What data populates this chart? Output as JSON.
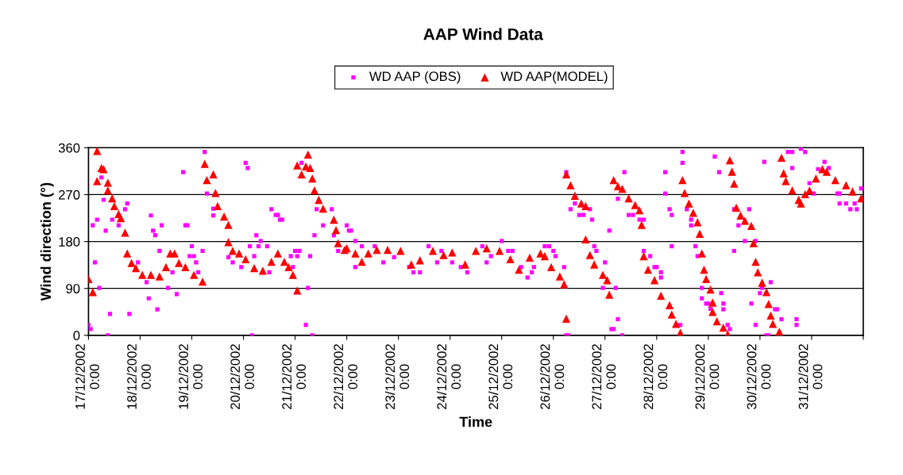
{
  "chart_data": {
    "type": "scatter",
    "title": "AAP Wind Data",
    "xlabel": "Time",
    "ylabel": "Wind direction (°)",
    "series": [
      {
        "name": "WD AAP (OBS)",
        "color": "#ff00ff",
        "marker": "square",
        "x": [
          "2002-12-17T00:00",
          "2002-12-17T01:00",
          "2002-12-17T02:00",
          "2002-12-17T03:00",
          "2002-12-17T04:00",
          "2002-12-17T05:00",
          "2002-12-17T06:00",
          "2002-12-17T07:00",
          "2002-12-17T08:00",
          "2002-12-17T09:00",
          "2002-12-17T10:00",
          "2002-12-17T11:00",
          "2002-12-17T14:00",
          "2002-12-17T17:00",
          "2002-12-17T18:00",
          "2002-12-17T19:00",
          "2002-12-17T23:00",
          "2002-12-18T03:00",
          "2002-12-18T04:00",
          "2002-12-18T05:00",
          "2002-12-18T06:00",
          "2002-12-18T07:00",
          "2002-12-18T08:00",
          "2002-12-18T09:00",
          "2002-12-18T10:00",
          "2002-12-18T13:00",
          "2002-12-18T15:00",
          "2002-12-18T17:00",
          "2002-12-18T20:00",
          "2002-12-18T21:00",
          "2002-12-18T22:00",
          "2002-12-18T23:00",
          "2002-12-19T00:00",
          "2002-12-19T01:00",
          "2002-12-19T02:00",
          "2002-12-19T03:00",
          "2002-12-19T05:00",
          "2002-12-19T06:00",
          "2002-12-19T07:00",
          "2002-12-19T10:00",
          "2002-12-19T10:00",
          "2002-12-19T17:00",
          "2002-12-19T19:00",
          "2002-12-19T23:00",
          "2002-12-20T01:00",
          "2002-12-20T02:00",
          "2002-12-20T03:00",
          "2002-12-20T04:00",
          "2002-12-20T05:00",
          "2002-12-20T06:00",
          "2002-12-20T08:00",
          "2002-12-20T07:00",
          "2002-12-20T11:00",
          "2002-12-20T12:00",
          "2002-12-20T13:00",
          "2002-12-20T15:00",
          "2002-12-20T16:00",
          "2002-12-20T17:00",
          "2002-12-20T18:00",
          "2002-12-20T22:00",
          "2002-12-20T23:00",
          "2002-12-21T00:00",
          "2002-12-21T01:00",
          "2002-12-21T02:00",
          "2002-12-21T03:00",
          "2002-12-21T05:00",
          "2002-12-21T06:00",
          "2002-12-21T07:00",
          "2002-12-21T08:00",
          "2002-12-21T09:00",
          "2002-12-21T10:00",
          "2002-12-21T13:00",
          "2002-12-21T17:00",
          "2002-12-21T18:00",
          "2002-12-21T20:00",
          "2002-12-22T00:00",
          "2002-12-22T01:00",
          "2002-12-22T02:00",
          "2002-12-22T04:00",
          "2002-12-22T04:00",
          "2002-12-22T07:00",
          "2002-12-22T13:00",
          "2002-12-22T17:00",
          "2002-12-22T22:00",
          "2002-12-23T05:00",
          "2002-12-23T07:00",
          "2002-12-23T10:00",
          "2002-12-23T14:00",
          "2002-12-23T18:00",
          "2002-12-23T20:00",
          "2002-12-24T01:00",
          "2002-12-24T05:00",
          "2002-12-24T08:00",
          "2002-12-24T15:00",
          "2002-12-24T17:00",
          "2002-12-24T19:00",
          "2002-12-25T00:00",
          "2002-12-25T03:00",
          "2002-12-25T05:00",
          "2002-12-25T09:00",
          "2002-12-25T12:00",
          "2002-12-25T14:00",
          "2002-12-25T15:00",
          "2002-12-25T20:00",
          "2002-12-25T22:00",
          "2002-12-26T00:00",
          "2002-12-26T01:00",
          "2002-12-26T05:00",
          "2002-12-26T06:00",
          "2002-12-26T07:00",
          "2002-12-26T06:00",
          "2002-12-26T08:00",
          "2002-12-26T10:00",
          "2002-12-26T12:00",
          "2002-12-26T14:00",
          "2002-12-26T17:00",
          "2002-12-26T18:00",
          "2002-12-26T19:00",
          "2002-12-26T20:00",
          "2002-12-26T23:00",
          "2002-12-27T00:00",
          "2002-12-27T02:00",
          "2002-12-27T03:00",
          "2002-12-27T04:00",
          "2002-12-27T05:00",
          "2002-12-27T06:00",
          "2002-12-27T08:00",
          "2002-12-27T06:00",
          "2002-12-27T09:00",
          "2002-12-27T11:00",
          "2002-12-27T13:00",
          "2002-12-27T16:00",
          "2002-12-27T18:00",
          "2002-12-27T18:00",
          "2002-12-27T21:00",
          "2002-12-27T23:00",
          "2002-12-28T00:00",
          "2002-12-28T02:00",
          "2002-12-28T02:00",
          "2002-12-28T04:00",
          "2002-12-28T04:00",
          "2002-12-28T06:00",
          "2002-12-28T07:00",
          "2002-12-28T07:00",
          "2002-12-28T11:00",
          "2002-12-28T12:00",
          "2002-12-28T12:00",
          "2002-12-28T14:00",
          "2002-12-28T16:00",
          "2002-12-28T16:00",
          "2002-12-28T18:00",
          "2002-12-28T19:00",
          "2002-12-28T21:00",
          "2002-12-28T21:00",
          "2002-12-28T23:00",
          "2002-12-29T00:00",
          "2002-12-29T01:00",
          "2002-12-29T03:00",
          "2002-12-29T05:00",
          "2002-12-29T06:00",
          "2002-12-29T07:00",
          "2002-12-29T07:00",
          "2002-12-29T09:00",
          "2002-12-29T10:00",
          "2002-12-29T12:00",
          "2002-12-29T12:00",
          "2002-12-29T14:00",
          "2002-12-29T17:00",
          "2002-12-29T19:00",
          "2002-12-29T20:00",
          "2002-12-29T22:00",
          "2002-12-29T22:00",
          "2002-12-30T00:00",
          "2002-12-30T01:00",
          "2002-12-30T03:00",
          "2002-12-30T04:00",
          "2002-12-30T05:00",
          "2002-12-30T07:00",
          "2002-12-30T08:00",
          "2002-12-30T10:00",
          "2002-12-30T02:00",
          "2002-12-30T13:00",
          "2002-12-30T15:00",
          "2002-12-30T15:00",
          "2002-12-30T17:00",
          "2002-12-30T17:00",
          "2002-12-30T19:00",
          "2002-12-30T21:00",
          "2002-12-30T23:00",
          "2002-12-31T01:00",
          "2002-12-31T03:00",
          "2002-12-31T06:00",
          "2002-12-31T08:00",
          "2002-12-31T12:00",
          "2002-12-31T13:00",
          "2002-12-31T13:00",
          "2002-12-31T16:00",
          "2002-12-31T18:00",
          "2002-12-31T20:00",
          "2002-12-31T21:00",
          "2002-12-31T23:00"
        ],
        "values": [
          20,
          12,
          211,
          140,
          222,
          91,
          303,
          260,
          201,
          0,
          41,
          222,
          211,
          242,
          253,
          41,
          140,
          102,
          71,
          230,
          201,
          192,
          50,
          162,
          211,
          91,
          121,
          79,
          313,
          211,
          211,
          152,
          171,
          152,
          140,
          121,
          162,
          352,
          272,
          230,
          243,
          150,
          140,
          131,
          331,
          321,
          171,
          0,
          152,
          192,
          181,
          171,
          171,
          121,
          242,
          231,
          231,
          222,
          222,
          152,
          131,
          162,
          152,
          162,
          331,
          20,
          91,
          152,
          0,
          192,
          242,
          211,
          242,
          192,
          162,
          211,
          201,
          201,
          181,
          131,
          171,
          171,
          140,
          150,
          131,
          121,
          121,
          171,
          140,
          162,
          140,
          131,
          121,
          171,
          140,
          152,
          181,
          162,
          162,
          131,
          111,
          121,
          131,
          171,
          171,
          162,
          152,
          131,
          0,
          0,
          313,
          242,
          253,
          231,
          231,
          242,
          222,
          171,
          162,
          91,
          140,
          201,
          12,
          12,
          91,
          31,
          0,
          262,
          313,
          231,
          231,
          222,
          222,
          162,
          152,
          131,
          131,
          121,
          111,
          313,
          272,
          242,
          231,
          171,
          20,
          352,
          331,
          242,
          222,
          211,
          171,
          152,
          91,
          71,
          61,
          61,
          51,
          343,
          313,
          81,
          61,
          50,
          20,
          12,
          242,
          162,
          211,
          181,
          242,
          61,
          181,
          20,
          81,
          91,
          0,
          0,
          102,
          50,
          50,
          31,
          333,
          352,
          352,
          321,
          31,
          20,
          358,
          352,
          292,
          272,
          319,
          333,
          321,
          272,
          272,
          253,
          253,
          242,
          253,
          242,
          282
        ]
      },
      {
        "name": "WD AAP(MODEL)",
        "color": "#ff0000",
        "marker": "triangle",
        "x": [
          "2002-12-17T00:00",
          "2002-12-17T02:00",
          "2002-12-17T04:00",
          "2002-12-17T04:00",
          "2002-12-17T06:00",
          "2002-12-17T07:00",
          "2002-12-17T09:00",
          "2002-12-17T09:00",
          "2002-12-17T11:00",
          "2002-12-17T12:00",
          "2002-12-17T14:00",
          "2002-12-17T15:00",
          "2002-12-17T17:00",
          "2002-12-17T18:00",
          "2002-12-17T20:00",
          "2002-12-17T22:00",
          "2002-12-18T01:00",
          "2002-12-18T05:00",
          "2002-12-18T09:00",
          "2002-12-18T12:00",
          "2002-12-18T14:00",
          "2002-12-18T16:00",
          "2002-12-18T18:00",
          "2002-12-18T21:00",
          "2002-12-19T01:00",
          "2002-12-19T05:00",
          "2002-12-19T06:00",
          "2002-12-19T07:00",
          "2002-12-19T10:00",
          "2002-12-19T11:00",
          "2002-12-19T12:00",
          "2002-12-19T15:00",
          "2002-12-19T17:00",
          "2002-12-19T17:00",
          "2002-12-19T19:00",
          "2002-12-19T22:00",
          "2002-12-20T01:00",
          "2002-12-20T05:00",
          "2002-12-20T09:00",
          "2002-12-20T13:00",
          "2002-12-20T16:00",
          "2002-12-20T19:00",
          "2002-12-20T21:00",
          "2002-12-20T23:00",
          "2002-12-21T01:00",
          "2002-12-21T01:00",
          "2002-12-21T03:00",
          "2002-12-21T05:00",
          "2002-12-21T06:00",
          "2002-12-21T07:00",
          "2002-12-21T08:00",
          "2002-12-21T09:00",
          "2002-12-21T11:00",
          "2002-12-21T13:00",
          "2002-12-21T18:00",
          "2002-12-21T19:00",
          "2002-12-21T20:00",
          "2002-12-21T23:00",
          "2002-12-22T00:00",
          "2002-12-22T04:00",
          "2002-12-22T07:00",
          "2002-12-22T10:00",
          "2002-12-22T14:00",
          "2002-12-22T19:00",
          "2002-12-23T01:00",
          "2002-12-23T06:00",
          "2002-12-23T10:00",
          "2002-12-23T16:00",
          "2002-12-23T21:00",
          "2002-12-24T01:00",
          "2002-12-24T07:00",
          "2002-12-24T12:00",
          "2002-12-24T17:00",
          "2002-12-24T23:00",
          "2002-12-25T04:00",
          "2002-12-25T08:00",
          "2002-12-25T13:00",
          "2002-12-25T18:00",
          "2002-12-25T20:00",
          "2002-12-25T23:00",
          "2002-12-26T03:00",
          "2002-12-26T05:00",
          "2002-12-26T06:00",
          "2002-12-26T06:00",
          "2002-12-26T08:00",
          "2002-12-26T10:00",
          "2002-12-26T13:00",
          "2002-12-26T15:00",
          "2002-12-26T15:00",
          "2002-12-26T17:00",
          "2002-12-26T19:00",
          "2002-12-26T23:00",
          "2002-12-27T01:00",
          "2002-12-27T02:00",
          "2002-12-27T04:00",
          "2002-12-27T06:00",
          "2002-12-27T08:00",
          "2002-12-27T11:00",
          "2002-12-27T14:00",
          "2002-12-27T16:00",
          "2002-12-27T17:00",
          "2002-12-27T18:00",
          "2002-12-27T20:00",
          "2002-12-27T23:00",
          "2002-12-28T02:00",
          "2002-12-28T06:00",
          "2002-12-28T07:00",
          "2002-12-28T09:00",
          "2002-12-28T11:00",
          "2002-12-28T12:00",
          "2002-12-28T13:00",
          "2002-12-28T15:00",
          "2002-12-28T17:00",
          "2002-12-28T19:00",
          "2002-12-28T20:00",
          "2002-12-28T21:00",
          "2002-12-28T22:00",
          "2002-12-28T23:00",
          "2002-12-29T01:00",
          "2002-12-29T02:00",
          "2002-12-29T02:00",
          "2002-12-29T04:00",
          "2002-12-29T07:00",
          "2002-12-29T09:00",
          "2002-12-29T10:00",
          "2002-12-29T11:00",
          "2002-12-29T12:00",
          "2002-12-29T13:00",
          "2002-12-29T15:00",
          "2002-12-29T17:00",
          "2002-12-29T20:00",
          "2002-12-29T21:00",
          "2002-12-29T22:00",
          "2002-12-29T23:00",
          "2002-12-30T01:00",
          "2002-12-30T03:00",
          "2002-12-30T04:00",
          "2002-12-30T05:00",
          "2002-12-30T06:00",
          "2002-12-30T09:00",
          "2002-12-30T10:00",
          "2002-12-30T11:00",
          "2002-12-30T12:00",
          "2002-12-30T15:00",
          "2002-12-30T18:00",
          "2002-12-30T19:00",
          "2002-12-30T21:00",
          "2002-12-30T23:00",
          "2002-12-31T02:00",
          "2002-12-31T05:00",
          "2002-12-31T07:00",
          "2002-12-31T11:00",
          "2002-12-31T16:00",
          "2002-12-31T19:00",
          "2002-12-31T23:00"
        ],
        "values": [
          108,
          83,
          354,
          296,
          321,
          319,
          293,
          278,
          263,
          248,
          233,
          225,
          197,
          157,
          139,
          129,
          116,
          116,
          113,
          131,
          157,
          157,
          139,
          131,
          116,
          103,
          329,
          298,
          309,
          273,
          248,
          228,
          212,
          179,
          162,
          157,
          146,
          129,
          124,
          141,
          157,
          141,
          131,
          116,
          86,
          326,
          309,
          324,
          347,
          321,
          301,
          278,
          260,
          243,
          222,
          202,
          177,
          164,
          167,
          157,
          141,
          157,
          164,
          164,
          162,
          136,
          144,
          162,
          154,
          159,
          136,
          162,
          167,
          162,
          146,
          126,
          149,
          157,
          152,
          131,
          113,
          98,
          32,
          309,
          288,
          268,
          253,
          248,
          184,
          154,
          136,
          116,
          106,
          78,
          298,
          286,
          281,
          263,
          250,
          240,
          212,
          152,
          126,
          106,
          76,
          58,
          40,
          22,
          5,
          298,
          273,
          253,
          235,
          217,
          195,
          157,
          126,
          108,
          88,
          63,
          45,
          27,
          15,
          2,
          336,
          314,
          291,
          245,
          230,
          220,
          210,
          177,
          141,
          121,
          101,
          83,
          60,
          38,
          22,
          7,
          341,
          311,
          296,
          278,
          260,
          253,
          271,
          278,
          301,
          319,
          314,
          298,
          288,
          276,
          263
        ]
      }
    ],
    "xlim": [
      "2002-12-17T00:00",
      "2003-01-01T00:00"
    ],
    "xticks": [
      {
        "value": "2002-12-17T00:00",
        "label": "17/12/2002\n0:00"
      },
      {
        "value": "2002-12-18T00:00",
        "label": "18/12/2002\n0:00"
      },
      {
        "value": "2002-12-19T00:00",
        "label": "19/12/2002\n0:00"
      },
      {
        "value": "2002-12-20T00:00",
        "label": "20/12/2002\n0:00"
      },
      {
        "value": "2002-12-21T00:00",
        "label": "21/12/2002\n0:00"
      },
      {
        "value": "2002-12-22T00:00",
        "label": "22/12/2002\n0:00"
      },
      {
        "value": "2002-12-23T00:00",
        "label": "23/12/2002\n0:00"
      },
      {
        "value": "2002-12-24T00:00",
        "label": "24/12/2002\n0:00"
      },
      {
        "value": "2002-12-25T00:00",
        "label": "25/12/2002\n0:00"
      },
      {
        "value": "2002-12-26T00:00",
        "label": "26/12/2002\n0:00"
      },
      {
        "value": "2002-12-27T00:00",
        "label": "27/12/2002\n0:00"
      },
      {
        "value": "2002-12-28T00:00",
        "label": "28/12/2002\n0:00"
      },
      {
        "value": "2002-12-29T00:00",
        "label": "29/12/2002\n0:00"
      },
      {
        "value": "2002-12-30T00:00",
        "label": "30/12/2002\n0:00"
      },
      {
        "value": "2002-12-31T00:00",
        "label": "31/12/2002\n0:00"
      },
      {
        "value": "2003-01-01T00:00",
        "label": null
      }
    ],
    "ylim": [
      0,
      360
    ],
    "yticks": [
      0,
      90,
      180,
      270,
      360
    ],
    "grid": "y",
    "legend": "top"
  }
}
